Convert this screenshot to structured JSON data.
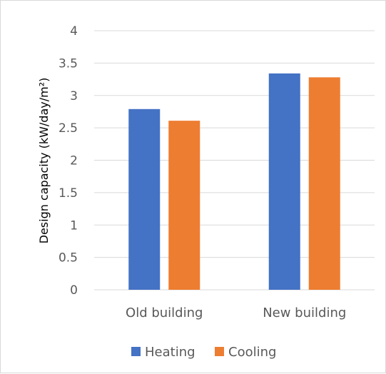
{
  "chart_data": {
    "type": "bar",
    "categories": [
      "Old building",
      "New building"
    ],
    "series": [
      {
        "name": "Heating",
        "values": [
          2.79,
          3.34
        ],
        "color": "#4472c4"
      },
      {
        "name": "Cooling",
        "values": [
          2.61,
          3.28
        ],
        "color": "#ed7d31"
      }
    ],
    "ylabel": "Design capacity (kW/day/m²)",
    "xlabel": "",
    "ylim": [
      0,
      4
    ],
    "yticks": [
      0,
      0.5,
      1,
      1.5,
      2,
      2.5,
      3,
      3.5,
      4
    ],
    "ytick_labels": [
      "0",
      "0.5",
      "1",
      "1.5",
      "2",
      "2.5",
      "3",
      "3.5",
      "4"
    ],
    "grid": true,
    "gridline_color": "#d9d9d9",
    "legend_position": "bottom"
  }
}
